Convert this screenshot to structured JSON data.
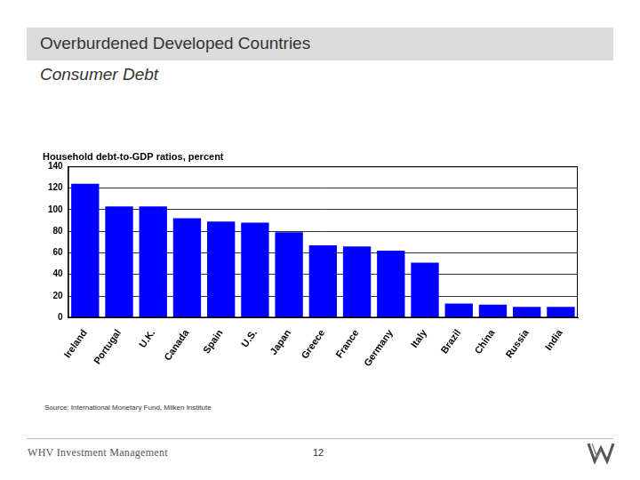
{
  "header": {
    "title": "Overburdened Developed Countries",
    "subtitle": "Consumer Debt"
  },
  "chart_data": {
    "type": "bar",
    "title": "Household debt-to-GDP ratios, percent",
    "categories": [
      "Ireland",
      "Portugal",
      "U.K.",
      "Canada",
      "Spain",
      "U.S.",
      "Japan",
      "Greece",
      "France",
      "Germany",
      "Italy",
      "Brazil",
      "China",
      "Russia",
      "India"
    ],
    "values": [
      124,
      103,
      103,
      92,
      89,
      88,
      79,
      67,
      66,
      62,
      51,
      13,
      12,
      10,
      10
    ],
    "color": "#0000ff",
    "ylim": [
      0,
      140
    ],
    "yticks": [
      0,
      20,
      40,
      60,
      80,
      100,
      120,
      140
    ],
    "grid": true
  },
  "footer": {
    "source": "Source: International Monetary Fund, Milken Institute",
    "company": "WHV Investment Management",
    "page": "12"
  }
}
